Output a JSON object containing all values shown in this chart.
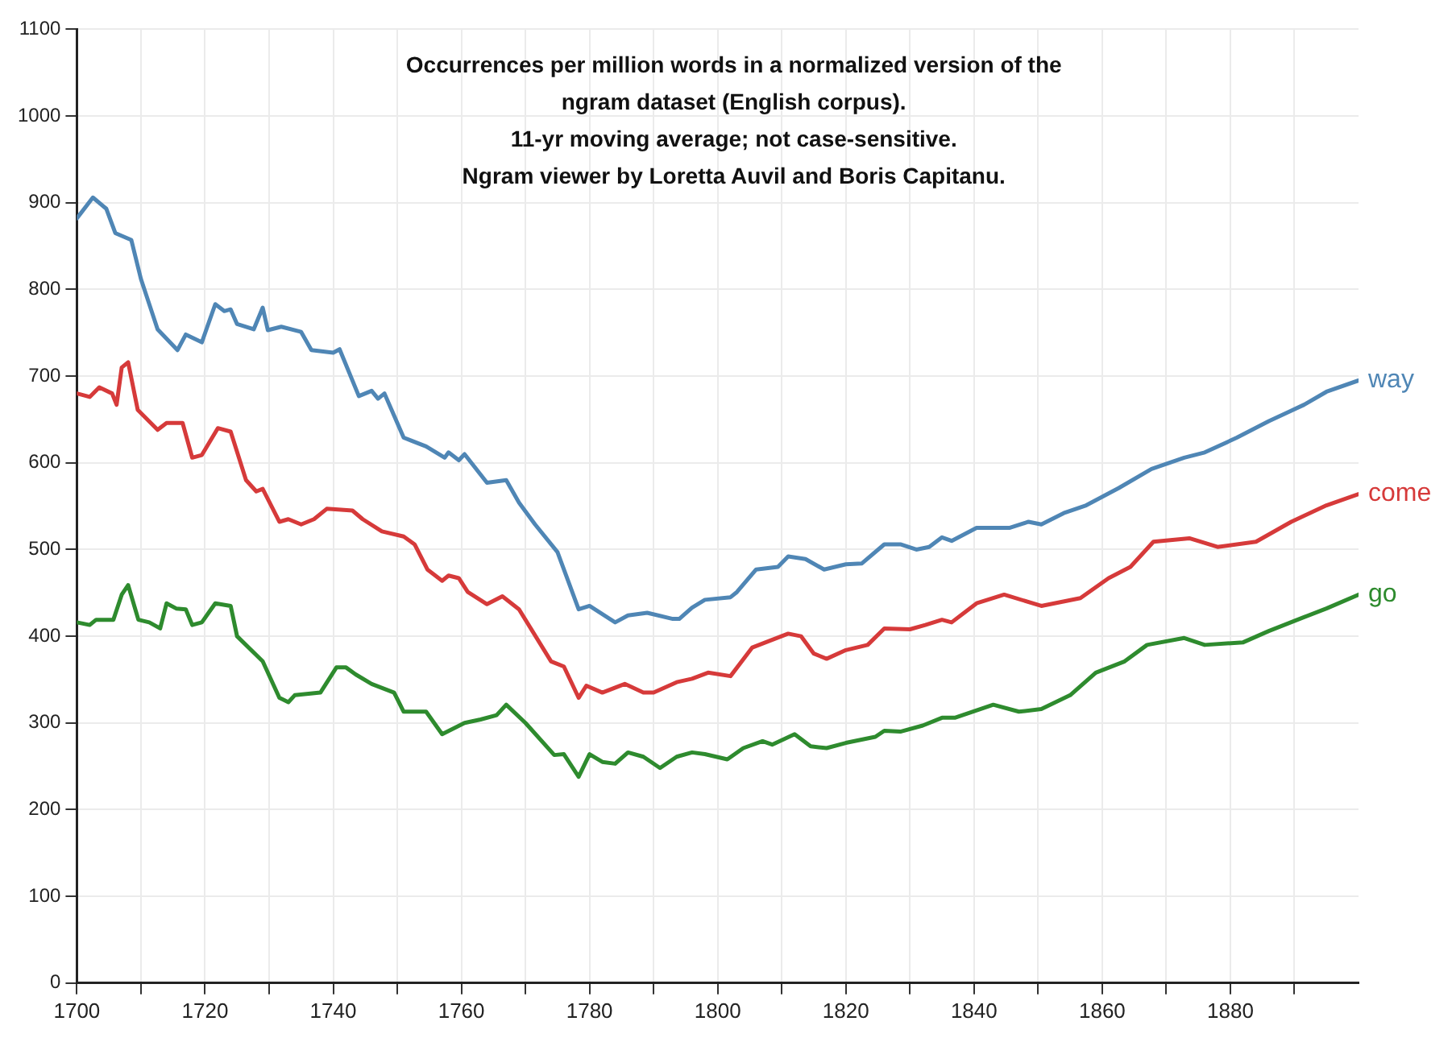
{
  "chart_data": {
    "type": "line",
    "title": "Occurrences per million words in a normalized version of the\nngram dataset (English corpus).\n11-yr moving average; not case-sensitive.\nNgram viewer by Loretta Auvil and Boris Capitanu.",
    "xlim": [
      1700,
      1900
    ],
    "xticks": [
      1700,
      {
        "value": 1710,
        "label": null
      },
      1720,
      {
        "value": 1730,
        "label": null
      },
      1740,
      {
        "value": 1750,
        "label": null
      },
      1760,
      {
        "value": 1770,
        "label": null
      },
      1780,
      {
        "value": 1790,
        "label": null
      },
      1800,
      {
        "value": 1810,
        "label": null
      },
      1820,
      {
        "value": 1830,
        "label": null
      },
      1840,
      {
        "value": 1850,
        "label": null
      },
      1860,
      {
        "value": 1870,
        "label": null
      },
      1880,
      {
        "value": 1890,
        "label": null
      }
    ],
    "ylim": [
      0,
      1100
    ],
    "yticks": [
      0,
      100,
      200,
      300,
      400,
      500,
      600,
      700,
      800,
      900,
      1000,
      1100
    ],
    "grid": true,
    "legend": false,
    "marker": "none",
    "line_style": "solid",
    "series": [
      {
        "name": "way",
        "color": "#4f86b5",
        "x": [
          1700,
          1702.5,
          1704.6,
          1706,
          1708.5,
          1710,
          1712.6,
          1715.7,
          1717,
          1719.5,
          1721.6,
          1723,
          1724,
          1725,
          1727.6,
          1729,
          1729.8,
          1731.9,
          1735,
          1736.6,
          1740,
          1741,
          1744,
          1746,
          1747,
          1748,
          1751,
          1754.5,
          1757.4,
          1758,
          1759.6,
          1760.5,
          1764,
          1767,
          1769,
          1771.5,
          1775,
          1778.3,
          1780,
          1784,
          1786,
          1789,
          1793,
          1794,
          1796,
          1798,
          1802,
          1803,
          1806,
          1809.4,
          1811,
          1813.7,
          1816.6,
          1820,
          1822.5,
          1826,
          1828.5,
          1831,
          1833,
          1835,
          1836.5,
          1840.4,
          1845.5,
          1848.5,
          1850.5,
          1854,
          1857.5,
          1862.6,
          1867.7,
          1872.8,
          1876,
          1881,
          1886,
          1891.5,
          1895,
          1900
        ],
        "values": [
          882,
          906,
          893,
          865,
          857,
          812,
          754,
          730,
          748,
          739,
          783,
          775,
          777,
          760,
          754,
          779,
          753,
          757,
          751,
          730,
          727,
          731,
          677,
          683,
          674,
          680,
          629,
          619,
          606,
          612,
          603,
          610,
          577,
          580,
          554,
          529,
          497,
          431,
          435,
          416,
          424,
          427,
          420,
          420,
          433,
          442,
          445,
          451,
          477,
          480,
          492,
          489,
          477,
          483,
          484,
          506,
          506,
          500,
          503,
          514,
          510,
          525,
          525,
          532,
          529,
          542,
          551,
          571,
          593,
          606,
          612,
          629,
          648,
          667,
          682,
          695
        ]
      },
      {
        "name": "come",
        "color": "#d63a3a",
        "x": [
          1700,
          1702,
          1703.5,
          1705.5,
          1706.2,
          1707,
          1708,
          1709.5,
          1712.6,
          1714,
          1716.5,
          1718,
          1719.5,
          1722,
          1724,
          1726.4,
          1728,
          1729,
          1731.6,
          1733,
          1735,
          1737,
          1739,
          1743,
          1744.6,
          1747.6,
          1751,
          1752.7,
          1754.7,
          1757,
          1758,
          1759.6,
          1761,
          1764,
          1766.4,
          1769,
          1774,
          1776,
          1778.3,
          1779.5,
          1782,
          1785.5,
          1788.4,
          1790,
          1793.6,
          1796,
          1798.5,
          1802,
          1805.4,
          1807.5,
          1811,
          1813,
          1815,
          1817,
          1820,
          1823.4,
          1826,
          1830,
          1832.4,
          1835,
          1836.5,
          1840.4,
          1844.7,
          1850.5,
          1856.6,
          1861,
          1864.4,
          1868,
          1873.6,
          1878,
          1884,
          1889.5,
          1895,
          1900
        ],
        "values": [
          680,
          676,
          687,
          680,
          667,
          710,
          716,
          661,
          638,
          646,
          646,
          606,
          609,
          640,
          636,
          580,
          567,
          570,
          532,
          535,
          529,
          535,
          547,
          545,
          535,
          521,
          515,
          506,
          477,
          464,
          470,
          467,
          451,
          437,
          446,
          431,
          371,
          365,
          329,
          343,
          335,
          345,
          335,
          335,
          347,
          351,
          358,
          354,
          387,
          393,
          403,
          400,
          380,
          374,
          384,
          390,
          409,
          408,
          413,
          419,
          416,
          438,
          448,
          435,
          444,
          467,
          480,
          509,
          513,
          503,
          509,
          532,
          551,
          564
        ]
      },
      {
        "name": "go",
        "color": "#2e8b2e",
        "x": [
          1700,
          1702,
          1703,
          1705.7,
          1707,
          1708,
          1709.6,
          1711.3,
          1713,
          1714,
          1715.5,
          1717,
          1718,
          1719.5,
          1721.6,
          1724,
          1725,
          1729,
          1731.6,
          1733,
          1734,
          1738,
          1740.5,
          1742,
          1743.5,
          1746,
          1749.5,
          1751,
          1754.5,
          1757,
          1760.5,
          1763,
          1765.5,
          1767,
          1770,
          1774.5,
          1776,
          1778.3,
          1780,
          1782,
          1784,
          1786,
          1788.4,
          1791,
          1793.6,
          1796,
          1798,
          1801.5,
          1804,
          1807,
          1808.5,
          1812,
          1814.5,
          1817,
          1820,
          1824.6,
          1826,
          1828.5,
          1832,
          1835,
          1837,
          1843,
          1847,
          1850.5,
          1855,
          1859,
          1863.5,
          1867,
          1872.8,
          1876,
          1882,
          1886,
          1891.5,
          1895,
          1900
        ],
        "values": [
          416,
          413,
          419,
          419,
          448,
          459,
          419,
          416,
          409,
          438,
          432,
          431,
          413,
          416,
          438,
          435,
          400,
          371,
          329,
          324,
          332,
          335,
          364,
          364,
          356,
          345,
          335,
          313,
          313,
          287,
          300,
          304,
          309,
          321,
          300,
          263,
          264,
          238,
          264,
          255,
          253,
          266,
          261,
          248,
          261,
          266,
          264,
          258,
          271,
          279,
          275,
          287,
          273,
          271,
          277,
          284,
          291,
          290,
          297,
          306,
          306,
          321,
          313,
          316,
          332,
          358,
          371,
          390,
          398,
          390,
          393,
          406,
          422,
          432,
          448
        ]
      }
    ]
  }
}
